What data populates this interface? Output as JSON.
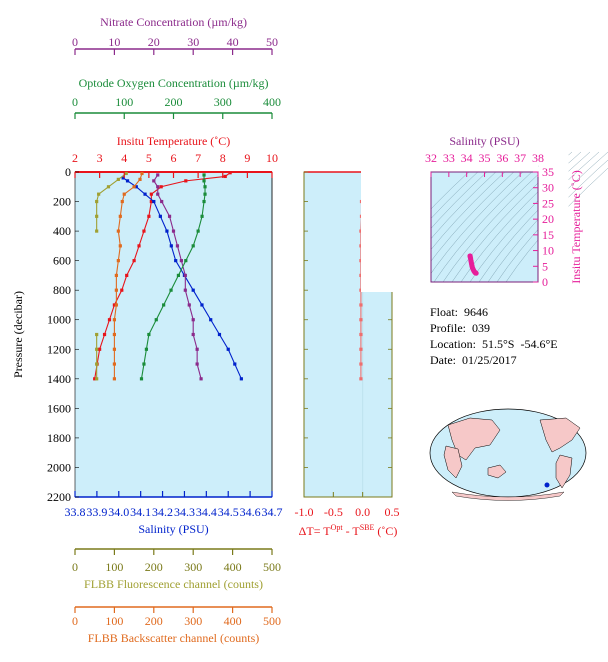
{
  "info": {
    "float": "Float:  9646",
    "profile": "Profile:  039",
    "location": "Location:  51.5°S  -54.6°E",
    "date": "Date:  01/25/2017"
  },
  "colors": {
    "panel_bg": "#cdeefa",
    "temperature": "#e8141b",
    "salinity": "#0022cc",
    "nitrate": "#8b2a8b",
    "oxygen": "#1a8c3a",
    "fluorescence": "#a0a032",
    "backscatter": "#e06a1e",
    "ts": "#e61e9a",
    "delta_t": "#f06e6e",
    "axis_olive": "#7a7a1a",
    "land": "#f6c8c8"
  },
  "chart_data": [
    {
      "type": "line",
      "ylabel": "Pressure (decibar)",
      "ylim": [
        2200,
        0
      ],
      "yticks": [
        "0",
        "200",
        "400",
        "600",
        "800",
        "1000",
        "1200",
        "1400",
        "1600",
        "1800",
        "2000",
        "2200"
      ],
      "axes": {
        "nitrate": {
          "label": "Nitrate Concentration (µm/kg)",
          "range": [
            0,
            50
          ],
          "ticks": [
            "0",
            "10",
            "20",
            "30",
            "40",
            "50"
          ]
        },
        "oxygen": {
          "label": "Optode Oxygen Concentration (µm/kg)",
          "range": [
            0,
            400
          ],
          "ticks": [
            "0",
            "100",
            "200",
            "300",
            "400"
          ]
        },
        "temperature": {
          "label": "Insitu Temperature (˚C)",
          "range": [
            2,
            10
          ],
          "ticks": [
            "2",
            "3",
            "4",
            "5",
            "6",
            "7",
            "8",
            "9",
            "10"
          ]
        },
        "salinity": {
          "label": "Salinity (PSU)",
          "range": [
            33.8,
            34.7
          ],
          "ticks": [
            "33.8",
            "33.9",
            "34.0",
            "34.1",
            "34.2",
            "34.3",
            "34.4",
            "34.5",
            "34.6",
            "34.7"
          ]
        },
        "fluorescence": {
          "label": "FLBB Fluorescence channel (counts)",
          "range": [
            0,
            500
          ],
          "ticks": [
            "0",
            "100",
            "200",
            "300",
            "400",
            "500"
          ]
        },
        "backscatter": {
          "label": "FLBB Backscatter channel (counts)",
          "range": [
            0,
            500
          ],
          "ticks": [
            "0",
            "100",
            "200",
            "300",
            "400",
            "500"
          ]
        }
      },
      "series": [
        {
          "axis": "temperature",
          "points": [
            [
              8.3,
              5
            ],
            [
              8.1,
              30
            ],
            [
              6.5,
              60
            ],
            [
              5.5,
              100
            ],
            [
              5.1,
              150
            ],
            [
              5.1,
              200
            ],
            [
              5.0,
              300
            ],
            [
              4.8,
              400
            ],
            [
              4.6,
              500
            ],
            [
              4.4,
              600
            ],
            [
              4.1,
              700
            ],
            [
              3.9,
              800
            ],
            [
              3.6,
              900
            ],
            [
              3.4,
              1000
            ],
            [
              3.2,
              1100
            ],
            [
              3.0,
              1200
            ],
            [
              2.9,
              1300
            ],
            [
              2.8,
              1400
            ]
          ]
        },
        {
          "axis": "salinity",
          "points": [
            [
              34.02,
              40
            ],
            [
              34.04,
              60
            ],
            [
              34.08,
              100
            ],
            [
              34.12,
              150
            ],
            [
              34.16,
              200
            ],
            [
              34.19,
              300
            ],
            [
              34.22,
              400
            ],
            [
              34.24,
              500
            ],
            [
              34.26,
              600
            ],
            [
              34.3,
              700
            ],
            [
              34.34,
              800
            ],
            [
              34.38,
              900
            ],
            [
              34.42,
              1000
            ],
            [
              34.46,
              1100
            ],
            [
              34.5,
              1200
            ],
            [
              34.53,
              1300
            ],
            [
              34.56,
              1400
            ]
          ]
        },
        {
          "axis": "nitrate",
          "points": [
            [
              21,
              20
            ],
            [
              20,
              60
            ],
            [
              21,
              100
            ],
            [
              21,
              150
            ],
            [
              22,
              200
            ],
            [
              24,
              300
            ],
            [
              25,
              400
            ],
            [
              26,
              500
            ],
            [
              27,
              600
            ],
            [
              28,
              700
            ],
            [
              28,
              800
            ],
            [
              29,
              900
            ],
            [
              30,
              1000
            ],
            [
              30,
              1100
            ],
            [
              31,
              1200
            ],
            [
              31,
              1300
            ],
            [
              32,
              1400
            ]
          ]
        },
        {
          "axis": "oxygen",
          "points": [
            [
              262,
              20
            ],
            [
              262,
              60
            ],
            [
              264,
              100
            ],
            [
              264,
              150
            ],
            [
              262,
              200
            ],
            [
              258,
              300
            ],
            [
              250,
              400
            ],
            [
              240,
              500
            ],
            [
              225,
              600
            ],
            [
              210,
              700
            ],
            [
              195,
              800
            ],
            [
              180,
              900
            ],
            [
              165,
              1000
            ],
            [
              150,
              1100
            ],
            [
              145,
              1200
            ],
            [
              140,
              1300
            ],
            [
              135,
              1400
            ]
          ]
        },
        {
          "axis": "fluorescence",
          "points": [
            [
              130,
              10
            ],
            [
              110,
              50
            ],
            [
              85,
              100
            ],
            [
              60,
              150
            ],
            [
              55,
              200
            ],
            [
              55,
              300
            ],
            [
              55,
              400
            ]
          ]
        },
        {
          "axis": "fluorescence",
          "points": [
            [
              55,
              1100
            ],
            [
              55,
              1200
            ],
            [
              55,
              1300
            ],
            [
              55,
              1400
            ]
          ]
        },
        {
          "axis": "backscatter",
          "points": [
            [
              170,
              10
            ],
            [
              165,
              50
            ],
            [
              150,
              100
            ],
            [
              125,
              150
            ],
            [
              120,
              200
            ],
            [
              115,
              300
            ],
            [
              110,
              400
            ],
            [
              115,
              500
            ],
            [
              110,
              600
            ],
            [
              105,
              700
            ],
            [
              105,
              800
            ],
            [
              105,
              900
            ],
            [
              100,
              1000
            ],
            [
              100,
              1100
            ],
            [
              100,
              1200
            ],
            [
              100,
              1300
            ],
            [
              100,
              1400
            ]
          ]
        }
      ]
    },
    {
      "type": "line",
      "xlabel": "ΔT= T^Opt - T^SBE (˚C)",
      "xlim": [
        -1.0,
        0.5
      ],
      "xticks": [
        "-1.0",
        "-0.5",
        "0.0",
        "0.5"
      ],
      "ylim": [
        2200,
        0
      ],
      "points": [
        [
          0.1,
          60
        ],
        [
          0.0,
          100
        ],
        [
          0.0,
          150
        ],
        [
          -0.02,
          200
        ],
        [
          -0.02,
          300
        ],
        [
          -0.03,
          400
        ],
        [
          -0.03,
          500
        ],
        [
          -0.03,
          600
        ],
        [
          -0.03,
          700
        ],
        [
          -0.03,
          800
        ],
        [
          -0.03,
          900
        ],
        [
          -0.03,
          1000
        ],
        [
          -0.03,
          1100
        ],
        [
          -0.03,
          1200
        ],
        [
          -0.03,
          1300
        ],
        [
          -0.03,
          1400
        ]
      ]
    },
    {
      "type": "scatter",
      "title": "Salinity (PSU)",
      "ylabel": "Insitu Temperature (˚C)",
      "xlim": [
        32,
        38
      ],
      "ylim": [
        0,
        35
      ],
      "xticks": [
        "32",
        "33",
        "34",
        "35",
        "36",
        "37",
        "38"
      ],
      "yticks": [
        "0",
        "5",
        "10",
        "15",
        "20",
        "25",
        "30",
        "35"
      ],
      "points": [
        [
          34.19,
          8.3
        ],
        [
          34.2,
          8.0
        ],
        [
          34.22,
          7.5
        ],
        [
          34.24,
          6.8
        ],
        [
          34.26,
          6.2
        ],
        [
          34.28,
          5.6
        ],
        [
          34.3,
          5.1
        ],
        [
          34.32,
          4.6
        ],
        [
          34.35,
          4.2
        ],
        [
          34.38,
          3.8
        ],
        [
          34.42,
          3.4
        ],
        [
          34.46,
          3.1
        ],
        [
          34.5,
          2.9
        ],
        [
          34.53,
          2.8
        ]
      ]
    }
  ]
}
